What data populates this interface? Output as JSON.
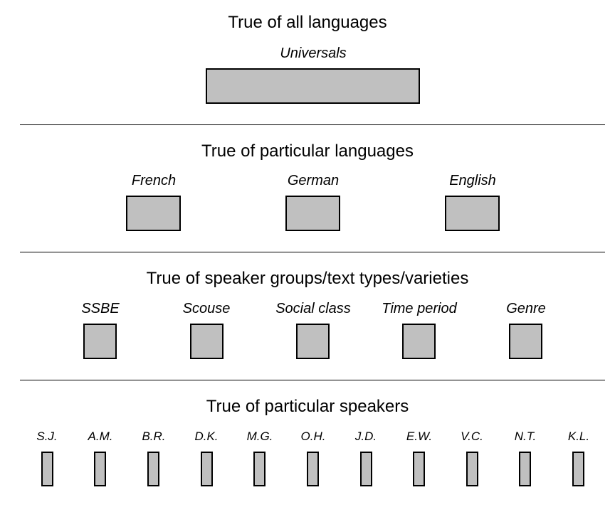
{
  "levels": {
    "universal": {
      "heading": "True of all languages",
      "items": [
        "Universals"
      ]
    },
    "languages": {
      "heading": "True of particular languages",
      "items": [
        "French",
        "German",
        "English"
      ]
    },
    "groups": {
      "heading": "True of speaker groups/text types/varieties",
      "items": [
        "SSBE",
        "Scouse",
        "Social class",
        "Time period",
        "Genre"
      ]
    },
    "speakers": {
      "heading": "True of particular speakers",
      "items": [
        "S.J.",
        "A.M.",
        "B.R.",
        "D.K.",
        "M.G.",
        "O.H.",
        "J.D.",
        "E.W.",
        "V.C.",
        "N.T.",
        "K.L."
      ]
    }
  },
  "colors": {
    "box_fill": "#c0c0c0",
    "box_stroke": "#000000"
  }
}
